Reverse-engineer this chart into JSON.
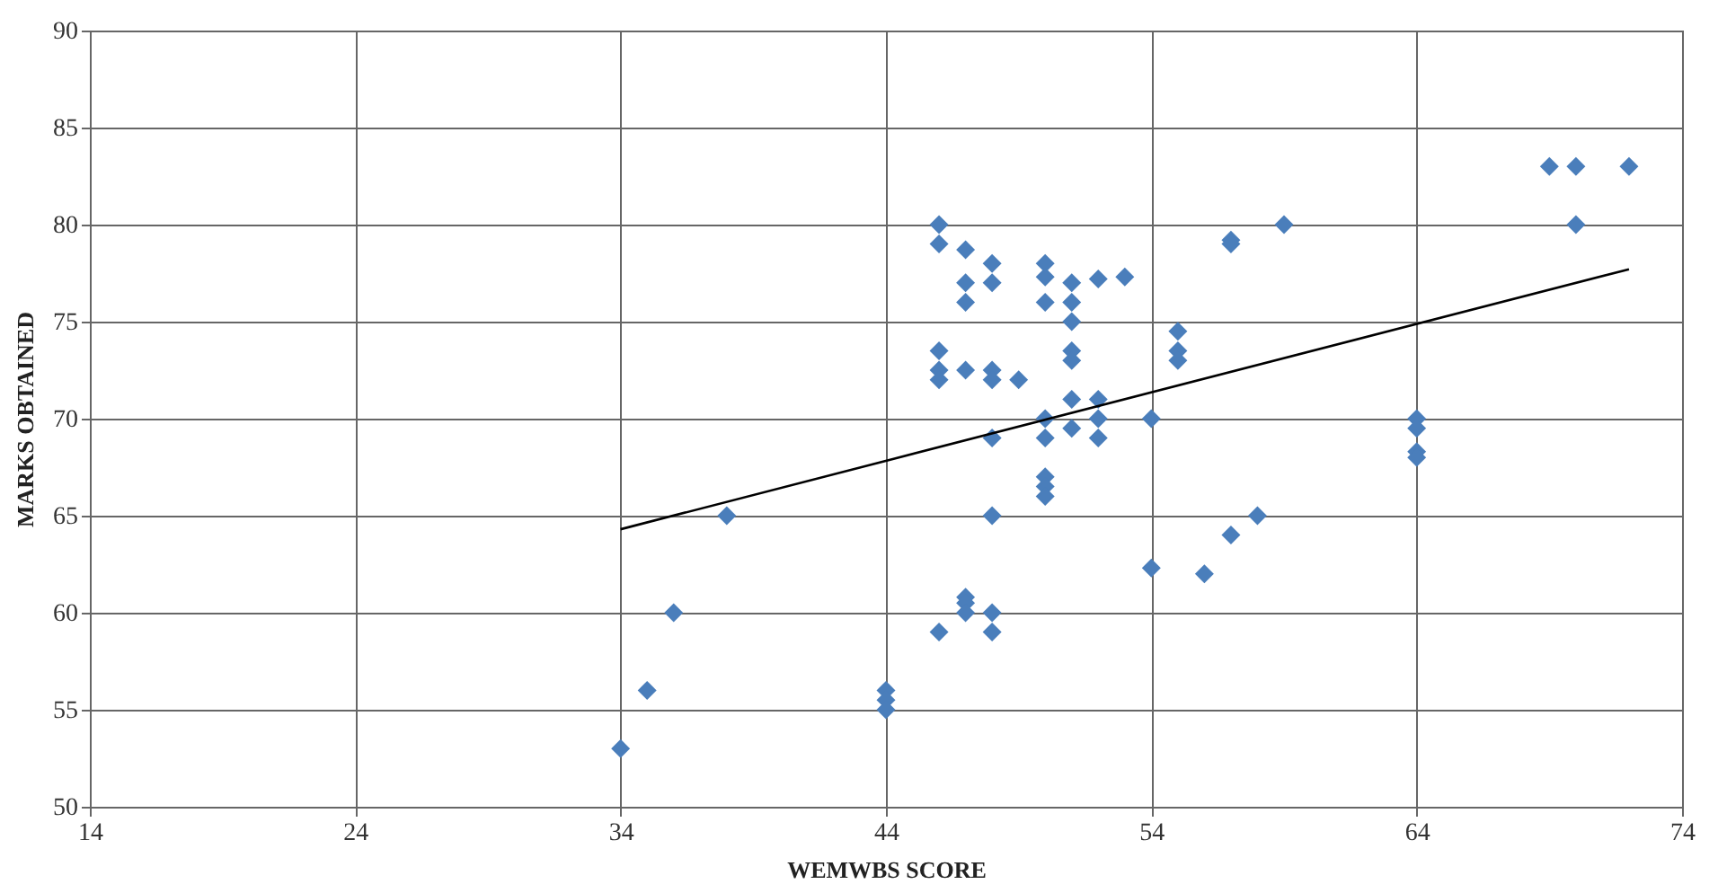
{
  "chart_data": {
    "type": "scatter",
    "xlabel": "WEMWBS SCORE",
    "ylabel": "MARKS OBTAINED",
    "xlim": [
      14,
      74
    ],
    "ylim": [
      50,
      90
    ],
    "xticks": [
      14,
      24,
      34,
      44,
      54,
      64,
      74
    ],
    "yticks": [
      50,
      55,
      60,
      65,
      70,
      75,
      80,
      85,
      90
    ],
    "grid": true,
    "marker": "diamond",
    "series": [
      {
        "color": "#4a7ebb",
        "x": [
          34,
          35,
          36,
          38,
          44,
          44,
          44,
          46,
          46,
          46,
          46,
          46,
          46,
          47,
          47,
          47,
          47,
          47,
          47,
          47,
          48,
          48,
          48,
          48,
          48,
          48,
          48,
          48,
          49,
          50,
          50,
          50,
          50,
          50,
          50,
          50,
          50,
          51,
          51,
          51,
          51,
          51,
          51,
          51,
          52,
          52,
          52,
          52,
          53,
          54,
          54,
          55,
          55,
          55,
          56,
          57,
          57,
          57,
          58,
          59,
          64,
          64,
          64,
          64,
          69,
          70,
          70,
          72
        ],
        "values": [
          53,
          56,
          60,
          65,
          56,
          55.5,
          55,
          80,
          79,
          73.5,
          72.5,
          72,
          59,
          78.7,
          77,
          76,
          72.5,
          60.8,
          60.5,
          60,
          78,
          77,
          72.5,
          72,
          69,
          65,
          60,
          59,
          72,
          78,
          77.3,
          76,
          70,
          69,
          67,
          66.5,
          66,
          77,
          76,
          75,
          73.5,
          73,
          71,
          69.5,
          77.2,
          71,
          70,
          69,
          77.3,
          70,
          62.3,
          74.5,
          73.5,
          73,
          62,
          79.2,
          79,
          64,
          65,
          80,
          70,
          69.5,
          68.3,
          68,
          83,
          83,
          80,
          83
        ]
      },
      {
        "type": "line",
        "color": "#000000",
        "x": [
          34,
          72
        ],
        "values": [
          64.3,
          77.7
        ],
        "marker": "none",
        "line_style": "solid"
      }
    ]
  }
}
